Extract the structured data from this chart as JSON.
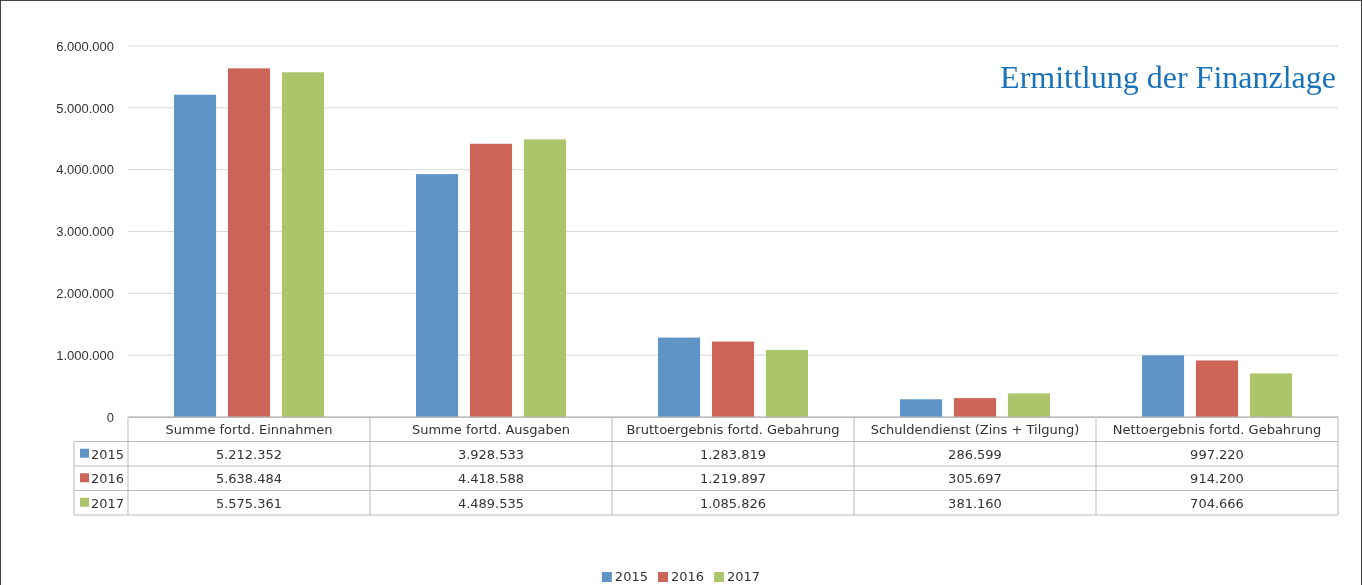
{
  "chart_data": {
    "type": "bar",
    "title": "Ermittlung der Finanzlage",
    "categories": [
      "Summe fortd. Einnahmen",
      "Summe fortd. Ausgaben",
      "Bruttoergebnis fortd. Gebahrung",
      "Schuldendienst (Zins + Tilgung)",
      "Nettoergebnis fortd. Gebahrung"
    ],
    "series": [
      {
        "name": "2015",
        "color": "#5e95c6",
        "values": [
          5212352,
          3928533,
          1283819,
          286599,
          997220
        ],
        "value_labels": [
          "5.212.352",
          "3.928.533",
          "1.283.819",
          "286.599",
          "997.220"
        ]
      },
      {
        "name": "2016",
        "color": "#cc6458",
        "values": [
          5638484,
          4418588,
          1219897,
          305697,
          914200
        ],
        "value_labels": [
          "5.638.484",
          "4.418.588",
          "1.219.897",
          "305.697",
          "914.200"
        ]
      },
      {
        "name": "2017",
        "color": "#adc56a",
        "values": [
          5575361,
          4489535,
          1085826,
          381160,
          704666
        ],
        "value_labels": [
          "5.575.361",
          "4.489.535",
          "1.085.826",
          "381.160",
          "704.666"
        ]
      }
    ],
    "ylim": [
      0,
      6000000
    ],
    "yticks": [
      0,
      {
        "value": 1000000,
        "label": "1.000.000"
      },
      {
        "value": 2000000,
        "label": "2.000.000"
      },
      {
        "value": 3000000,
        "label": "3.000.000"
      },
      {
        "value": 4000000,
        "label": "4.000.000"
      },
      {
        "value": 5000000,
        "label": "5.000.000"
      },
      {
        "value": 6000000,
        "label": "6.000.000"
      }
    ],
    "grid": "y",
    "legend": "bottom"
  }
}
